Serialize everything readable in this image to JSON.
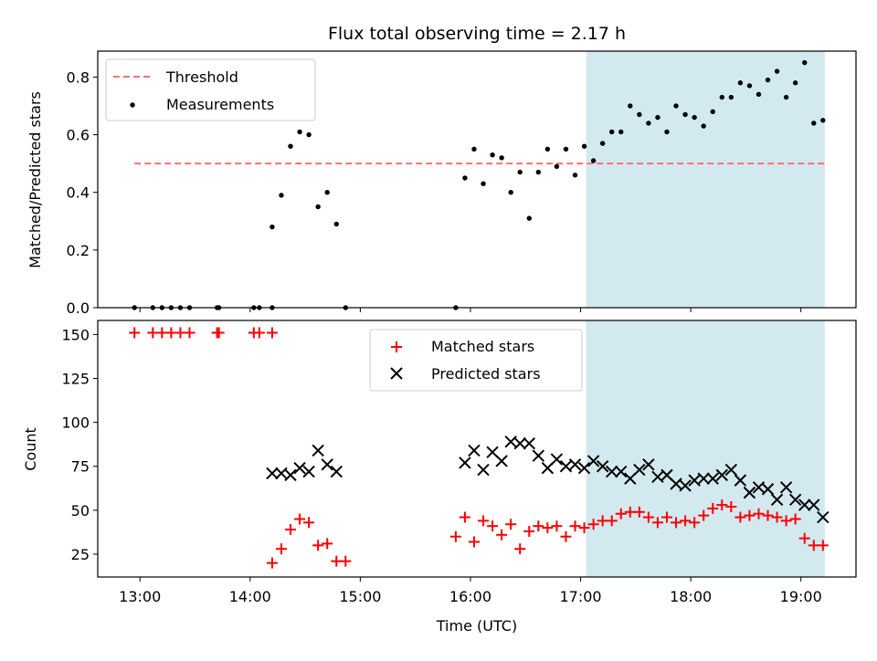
{
  "title": "Flux total observing time = 2.17 h",
  "chart_data": [
    {
      "type": "scatter",
      "panel": "top",
      "title": "Flux total observing time = 2.17 h",
      "ylabel": "Matched/Predicted stars",
      "xlabel": "",
      "xlim": [
        "12:37",
        "19:30"
      ],
      "ylim": [
        0,
        0.89
      ],
      "yticks": [
        0.0,
        0.2,
        0.4,
        0.6,
        0.8
      ],
      "ytick_labels": [
        "0.0",
        "0.2",
        "0.4",
        "0.6",
        "0.8"
      ],
      "legend_position": "top-left",
      "legend": [
        "Threshold",
        "Measurements"
      ],
      "highlight_span": {
        "start": "17:03",
        "end": "19:13",
        "color": "#d2e9f0"
      },
      "threshold": {
        "name": "Threshold",
        "value": 0.5,
        "x_start": "12:57",
        "x_end": "19:13",
        "color": "#ff7070",
        "style": "dashed"
      },
      "series": [
        {
          "name": "Measurements",
          "color": "#000000",
          "marker": "dot",
          "x": [
            "12:57",
            "13:07",
            "13:12",
            "13:17",
            "13:22",
            "13:27",
            "13:42",
            "13:43",
            "14:02",
            "14:05",
            "14:12",
            "14:12",
            "14:17",
            "14:22",
            "14:27",
            "14:32",
            "14:37",
            "14:42",
            "14:47",
            "14:52",
            "15:52",
            "15:57",
            "16:02",
            "16:07",
            "16:12",
            "16:17",
            "16:22",
            "16:27",
            "16:32",
            "16:37",
            "16:42",
            "16:47",
            "16:52",
            "16:57",
            "17:02",
            "17:07",
            "17:12",
            "17:17",
            "17:22",
            "17:27",
            "17:32",
            "17:37",
            "17:42",
            "17:47",
            "17:52",
            "17:57",
            "18:02",
            "18:07",
            "18:12",
            "18:17",
            "18:22",
            "18:27",
            "18:32",
            "18:37",
            "18:42",
            "18:47",
            "18:52",
            "18:57",
            "19:02",
            "19:07",
            "19:12"
          ],
          "y": [
            0.0,
            0.0,
            0.0,
            0.0,
            0.0,
            0.0,
            0.0,
            0.0,
            0.0,
            0.0,
            0.0,
            0.28,
            0.39,
            0.56,
            0.61,
            0.6,
            0.35,
            0.4,
            0.29,
            0.0,
            0.0,
            0.45,
            0.55,
            0.43,
            0.53,
            0.52,
            0.4,
            0.47,
            0.31,
            0.47,
            0.55,
            0.49,
            0.55,
            0.46,
            0.56,
            0.51,
            0.57,
            0.61,
            0.61,
            0.7,
            0.67,
            0.64,
            0.66,
            0.61,
            0.7,
            0.67,
            0.66,
            0.63,
            0.68,
            0.73,
            0.73,
            0.78,
            0.77,
            0.74,
            0.79,
            0.82,
            0.73,
            0.78,
            0.85,
            0.64,
            0.65
          ]
        }
      ]
    },
    {
      "type": "scatter",
      "panel": "bottom",
      "xlabel": "Time (UTC)",
      "ylabel": "Count",
      "xlim": [
        "12:37",
        "19:30"
      ],
      "ylim": [
        12,
        158
      ],
      "xtick_labels": [
        "13:00",
        "14:00",
        "15:00",
        "16:00",
        "17:00",
        "18:00",
        "19:00"
      ],
      "yticks": [
        25,
        50,
        75,
        100,
        125,
        150
      ],
      "ytick_labels": [
        "25",
        "50",
        "75",
        "100",
        "125",
        "150"
      ],
      "legend_position": "upper center",
      "legend": [
        "Matched stars",
        "Predicted stars"
      ],
      "highlight_span": {
        "start": "17:03",
        "end": "19:13",
        "color": "#d2e9f0"
      },
      "series": [
        {
          "name": "Matched stars",
          "color": "#ff0000",
          "marker": "plus",
          "x": [
            "12:57",
            "13:07",
            "13:12",
            "13:17",
            "13:22",
            "13:27",
            "13:42",
            "13:43",
            "14:02",
            "14:05",
            "14:12",
            "14:12",
            "14:17",
            "14:22",
            "14:27",
            "14:32",
            "14:37",
            "14:42",
            "14:47",
            "14:52",
            "15:52",
            "15:57",
            "16:02",
            "16:07",
            "16:12",
            "16:17",
            "16:22",
            "16:27",
            "16:32",
            "16:37",
            "16:42",
            "16:47",
            "16:52",
            "16:57",
            "17:02",
            "17:07",
            "17:12",
            "17:17",
            "17:22",
            "17:27",
            "17:32",
            "17:37",
            "17:42",
            "17:47",
            "17:52",
            "17:57",
            "18:02",
            "18:07",
            "18:12",
            "18:17",
            "18:22",
            "18:27",
            "18:32",
            "18:37",
            "18:42",
            "18:47",
            "18:52",
            "18:57",
            "19:02",
            "19:07",
            "19:12"
          ],
          "y": [
            151,
            151,
            151,
            151,
            151,
            151,
            151,
            151,
            151,
            151,
            151,
            20,
            28,
            39,
            45,
            43,
            30,
            31,
            21,
            21,
            35,
            46,
            32,
            44,
            41,
            36,
            42,
            28,
            38,
            41,
            40,
            41,
            35,
            41,
            40,
            42,
            44,
            44,
            48,
            49,
            49,
            46,
            43,
            46,
            43,
            44,
            43,
            47,
            51,
            53,
            52,
            46,
            47,
            48,
            47,
            46,
            44,
            45,
            34,
            30,
            30
          ]
        },
        {
          "name": "Predicted stars",
          "color": "#000000",
          "marker": "x",
          "x": [
            "14:12",
            "14:17",
            "14:22",
            "14:27",
            "14:32",
            "14:37",
            "14:42",
            "14:47",
            "15:57",
            "16:02",
            "16:07",
            "16:12",
            "16:17",
            "16:22",
            "16:27",
            "16:32",
            "16:37",
            "16:42",
            "16:47",
            "16:52",
            "16:57",
            "17:02",
            "17:07",
            "17:12",
            "17:17",
            "17:22",
            "17:27",
            "17:32",
            "17:37",
            "17:42",
            "17:47",
            "17:52",
            "17:57",
            "18:02",
            "18:07",
            "18:12",
            "18:17",
            "18:22",
            "18:27",
            "18:32",
            "18:37",
            "18:42",
            "18:47",
            "18:52",
            "18:57",
            "19:02",
            "19:07",
            "19:12"
          ],
          "y": [
            71,
            71,
            70,
            74,
            72,
            84,
            76,
            72,
            77,
            84,
            73,
            83,
            78,
            89,
            88,
            88,
            81,
            74,
            79,
            75,
            76,
            74,
            78,
            75,
            72,
            72,
            68,
            73,
            76,
            69,
            70,
            65,
            64,
            67,
            68,
            68,
            70,
            73,
            67,
            60,
            63,
            62,
            56,
            63,
            56,
            53,
            53,
            46
          ]
        }
      ]
    }
  ]
}
